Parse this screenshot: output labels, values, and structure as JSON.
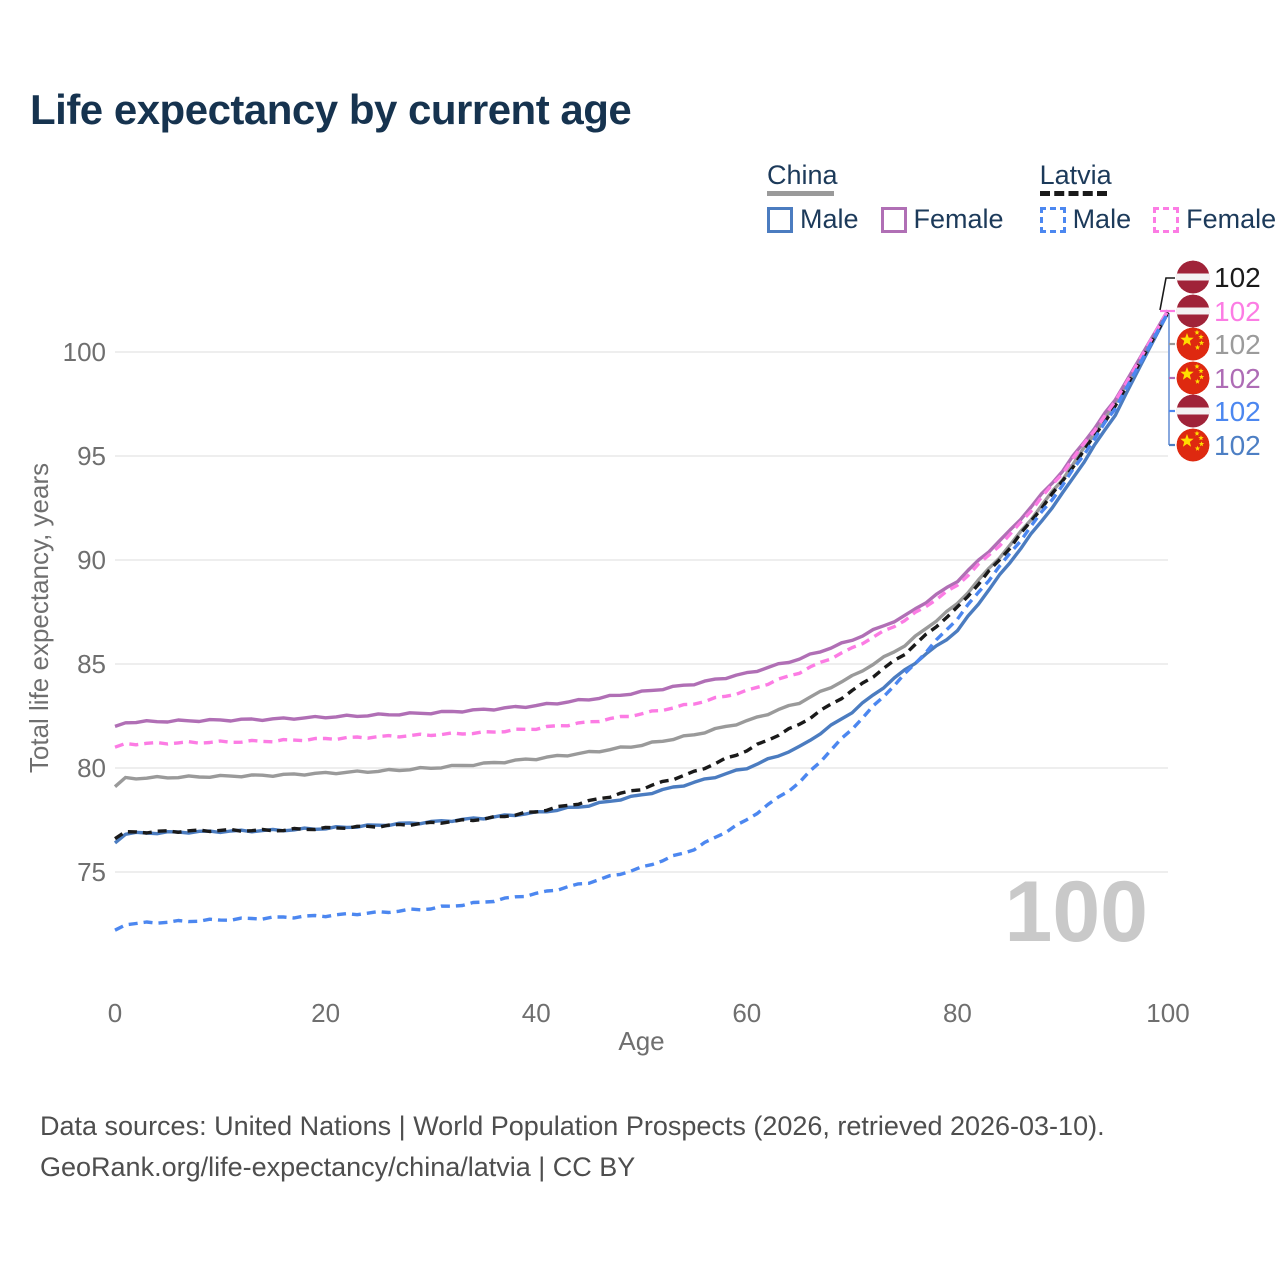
{
  "header": {
    "title": "Life expectancy by current age"
  },
  "legend": {
    "groups": [
      {
        "name": "China",
        "line_style": "solid",
        "line_color": "#9a9a9a",
        "items": [
          {
            "label": "Male",
            "color": "#4b7cc0",
            "dashed": false
          },
          {
            "label": "Female",
            "color": "#b06fb5",
            "dashed": false
          }
        ]
      },
      {
        "name": "Latvia",
        "line_style": "dashed",
        "line_color": "#1a1a1a",
        "items": [
          {
            "label": "Male",
            "color": "#4c87f0",
            "dashed": true
          },
          {
            "label": "Female",
            "color": "#fc7ce4",
            "dashed": true
          }
        ]
      }
    ]
  },
  "chart_data": {
    "type": "line",
    "title": "Life expectancy by current age",
    "xlabel": "Age",
    "ylabel": "Total life expectancy, years",
    "xlim": [
      0,
      100
    ],
    "ylim": [
      71,
      103
    ],
    "x_ticks": [
      0,
      20,
      40,
      60,
      80,
      100
    ],
    "y_ticks": [
      75,
      80,
      85,
      90,
      95,
      100
    ],
    "grid": "horizontal",
    "legend_position": "top-right",
    "age_indicator": "100",
    "x": [
      0,
      1,
      5,
      10,
      15,
      20,
      25,
      30,
      35,
      40,
      45,
      50,
      55,
      60,
      65,
      70,
      75,
      80,
      85,
      90,
      95,
      100
    ],
    "series": [
      {
        "id": "china",
        "name": "China",
        "color": "#9a9a9a",
        "dashed": false,
        "values": [
          79.1,
          79.5,
          79.55,
          79.6,
          79.65,
          79.75,
          79.85,
          80.0,
          80.2,
          80.45,
          80.75,
          81.1,
          81.6,
          82.25,
          83.15,
          84.4,
          85.9,
          87.9,
          90.7,
          93.9,
          97.5,
          101.9
        ]
      },
      {
        "id": "china-female",
        "name": "China Female",
        "color": "#b06fb5",
        "dashed": false,
        "values": [
          82.0,
          82.2,
          82.25,
          82.3,
          82.35,
          82.45,
          82.55,
          82.65,
          82.8,
          83.0,
          83.3,
          83.65,
          84.05,
          84.55,
          85.25,
          86.15,
          87.3,
          89.0,
          91.4,
          94.3,
          97.7,
          102.0
        ]
      },
      {
        "id": "china-male",
        "name": "China Male",
        "color": "#4b7cc0",
        "dashed": false,
        "values": [
          76.4,
          76.85,
          76.9,
          76.95,
          77.0,
          77.1,
          77.25,
          77.4,
          77.6,
          77.85,
          78.2,
          78.7,
          79.3,
          80.0,
          81.0,
          82.7,
          84.7,
          86.6,
          89.9,
          93.2,
          97.0,
          101.9
        ]
      },
      {
        "id": "latvia",
        "name": "Latvia",
        "color": "#1a1a1a",
        "dashed": true,
        "values": [
          76.6,
          76.9,
          76.95,
          77.0,
          77.0,
          77.1,
          77.2,
          77.35,
          77.55,
          77.9,
          78.4,
          79.0,
          79.8,
          80.85,
          82.1,
          83.7,
          85.5,
          87.7,
          90.6,
          93.8,
          97.4,
          101.9
        ]
      },
      {
        "id": "latvia-female",
        "name": "Latvia Female",
        "color": "#fc7ce4",
        "dashed": true,
        "values": [
          81.0,
          81.15,
          81.2,
          81.25,
          81.3,
          81.4,
          81.5,
          81.6,
          81.7,
          81.9,
          82.2,
          82.6,
          83.1,
          83.7,
          84.6,
          85.75,
          87.1,
          88.8,
          91.2,
          94.2,
          97.6,
          102.0
        ]
      },
      {
        "id": "latvia-male",
        "name": "Latvia Male",
        "color": "#4c87f0",
        "dashed": true,
        "values": [
          72.2,
          72.5,
          72.6,
          72.7,
          72.8,
          72.9,
          73.05,
          73.25,
          73.55,
          73.95,
          74.5,
          75.2,
          76.1,
          77.5,
          79.3,
          81.9,
          84.5,
          87.2,
          90.3,
          93.6,
          97.3,
          101.9
        ]
      }
    ],
    "end_labels": [
      {
        "flag": "latvia",
        "series": "Latvia",
        "value": "102",
        "color": "#1a1a1a"
      },
      {
        "flag": "latvia",
        "series": "Latvia Female",
        "value": "102",
        "color": "#fc7ce4"
      },
      {
        "flag": "china",
        "series": "China",
        "value": "102",
        "color": "#9b9b9b"
      },
      {
        "flag": "china",
        "series": "China Female",
        "value": "102",
        "color": "#ae6cb5"
      },
      {
        "flag": "latvia",
        "series": "Latvia Male",
        "value": "102",
        "color": "#4c87f0"
      },
      {
        "flag": "china",
        "series": "China Male",
        "value": "102",
        "color": "#4d7fc4"
      }
    ],
    "flag_colors": {
      "latvia_red": "#a02339",
      "latvia_band": "#f4f2f3",
      "china_red": "#de2910",
      "china_star": "#ffde00"
    }
  },
  "footer": {
    "line1": "Data sources: United Nations | World Population Prospects (2026, retrieved 2026-03-10).",
    "line2": "GeoRank.org/life-expectancy/china/latvia | CC BY"
  }
}
